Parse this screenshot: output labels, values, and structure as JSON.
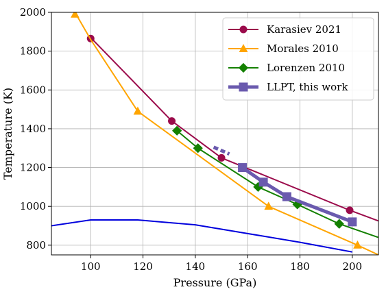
{
  "chart_data": {
    "type": "line",
    "xlabel": "Pressure (GPa)",
    "ylabel": "Temperature (K)",
    "xlim": [
      85,
      210
    ],
    "ylim": [
      750,
      2000
    ],
    "x_ticks": [
      100,
      120,
      140,
      160,
      180,
      200
    ],
    "y_ticks": [
      800,
      1000,
      1200,
      1400,
      1600,
      1800,
      2000
    ],
    "grid": true,
    "legend_position": "top-right",
    "series": [
      {
        "name": "Karasiev 2021",
        "color": "#9b0b4b",
        "marker": "circle",
        "line": [
          [
            100,
            1870
          ],
          [
            131,
            1440
          ],
          [
            150,
            1250
          ],
          [
            199,
            980
          ],
          [
            210,
            925
          ]
        ],
        "points": [
          [
            100,
            1865
          ],
          [
            131,
            1440
          ],
          [
            150,
            1250
          ],
          [
            199,
            980
          ]
        ]
      },
      {
        "name": "Morales 2010",
        "color": "#ffa500",
        "marker": "triangle",
        "line": [
          [
            94,
            2000
          ],
          [
            100,
            1860
          ],
          [
            118,
            1490
          ],
          [
            168,
            1000
          ],
          [
            202,
            800
          ],
          [
            210,
            750
          ]
        ],
        "points": [
          [
            94,
            1990
          ],
          [
            118,
            1490
          ],
          [
            168,
            1000
          ],
          [
            202,
            800
          ]
        ]
      },
      {
        "name": "Lorenzen 2010",
        "color": "#138000",
        "marker": "diamond",
        "line": [
          [
            133,
            1390
          ],
          [
            141,
            1300
          ],
          [
            164,
            1100
          ],
          [
            179,
            1010
          ],
          [
            195,
            910
          ],
          [
            210,
            840
          ]
        ],
        "points": [
          [
            133,
            1390
          ],
          [
            141,
            1300
          ],
          [
            164,
            1100
          ],
          [
            179,
            1010
          ],
          [
            195,
            910
          ]
        ]
      },
      {
        "name": "LLPT, this work",
        "color": "#6a5aae",
        "marker": "square",
        "line": [
          [
            158,
            1200
          ],
          [
            166,
            1125
          ],
          [
            175,
            1050
          ],
          [
            200,
            920
          ]
        ],
        "dashed": [
          [
            147,
            1305
          ],
          [
            153,
            1270
          ]
        ],
        "points": [
          [
            158,
            1200
          ],
          [
            166,
            1125
          ],
          [
            175,
            1050
          ],
          [
            200,
            920
          ]
        ]
      },
      {
        "color": "#0000dd",
        "marker": "none",
        "line": [
          [
            85,
            900
          ],
          [
            100,
            930
          ],
          [
            118,
            930
          ],
          [
            140,
            905
          ],
          [
            160,
            860
          ],
          [
            180,
            815
          ],
          [
            200,
            765
          ]
        ],
        "points": []
      }
    ]
  }
}
